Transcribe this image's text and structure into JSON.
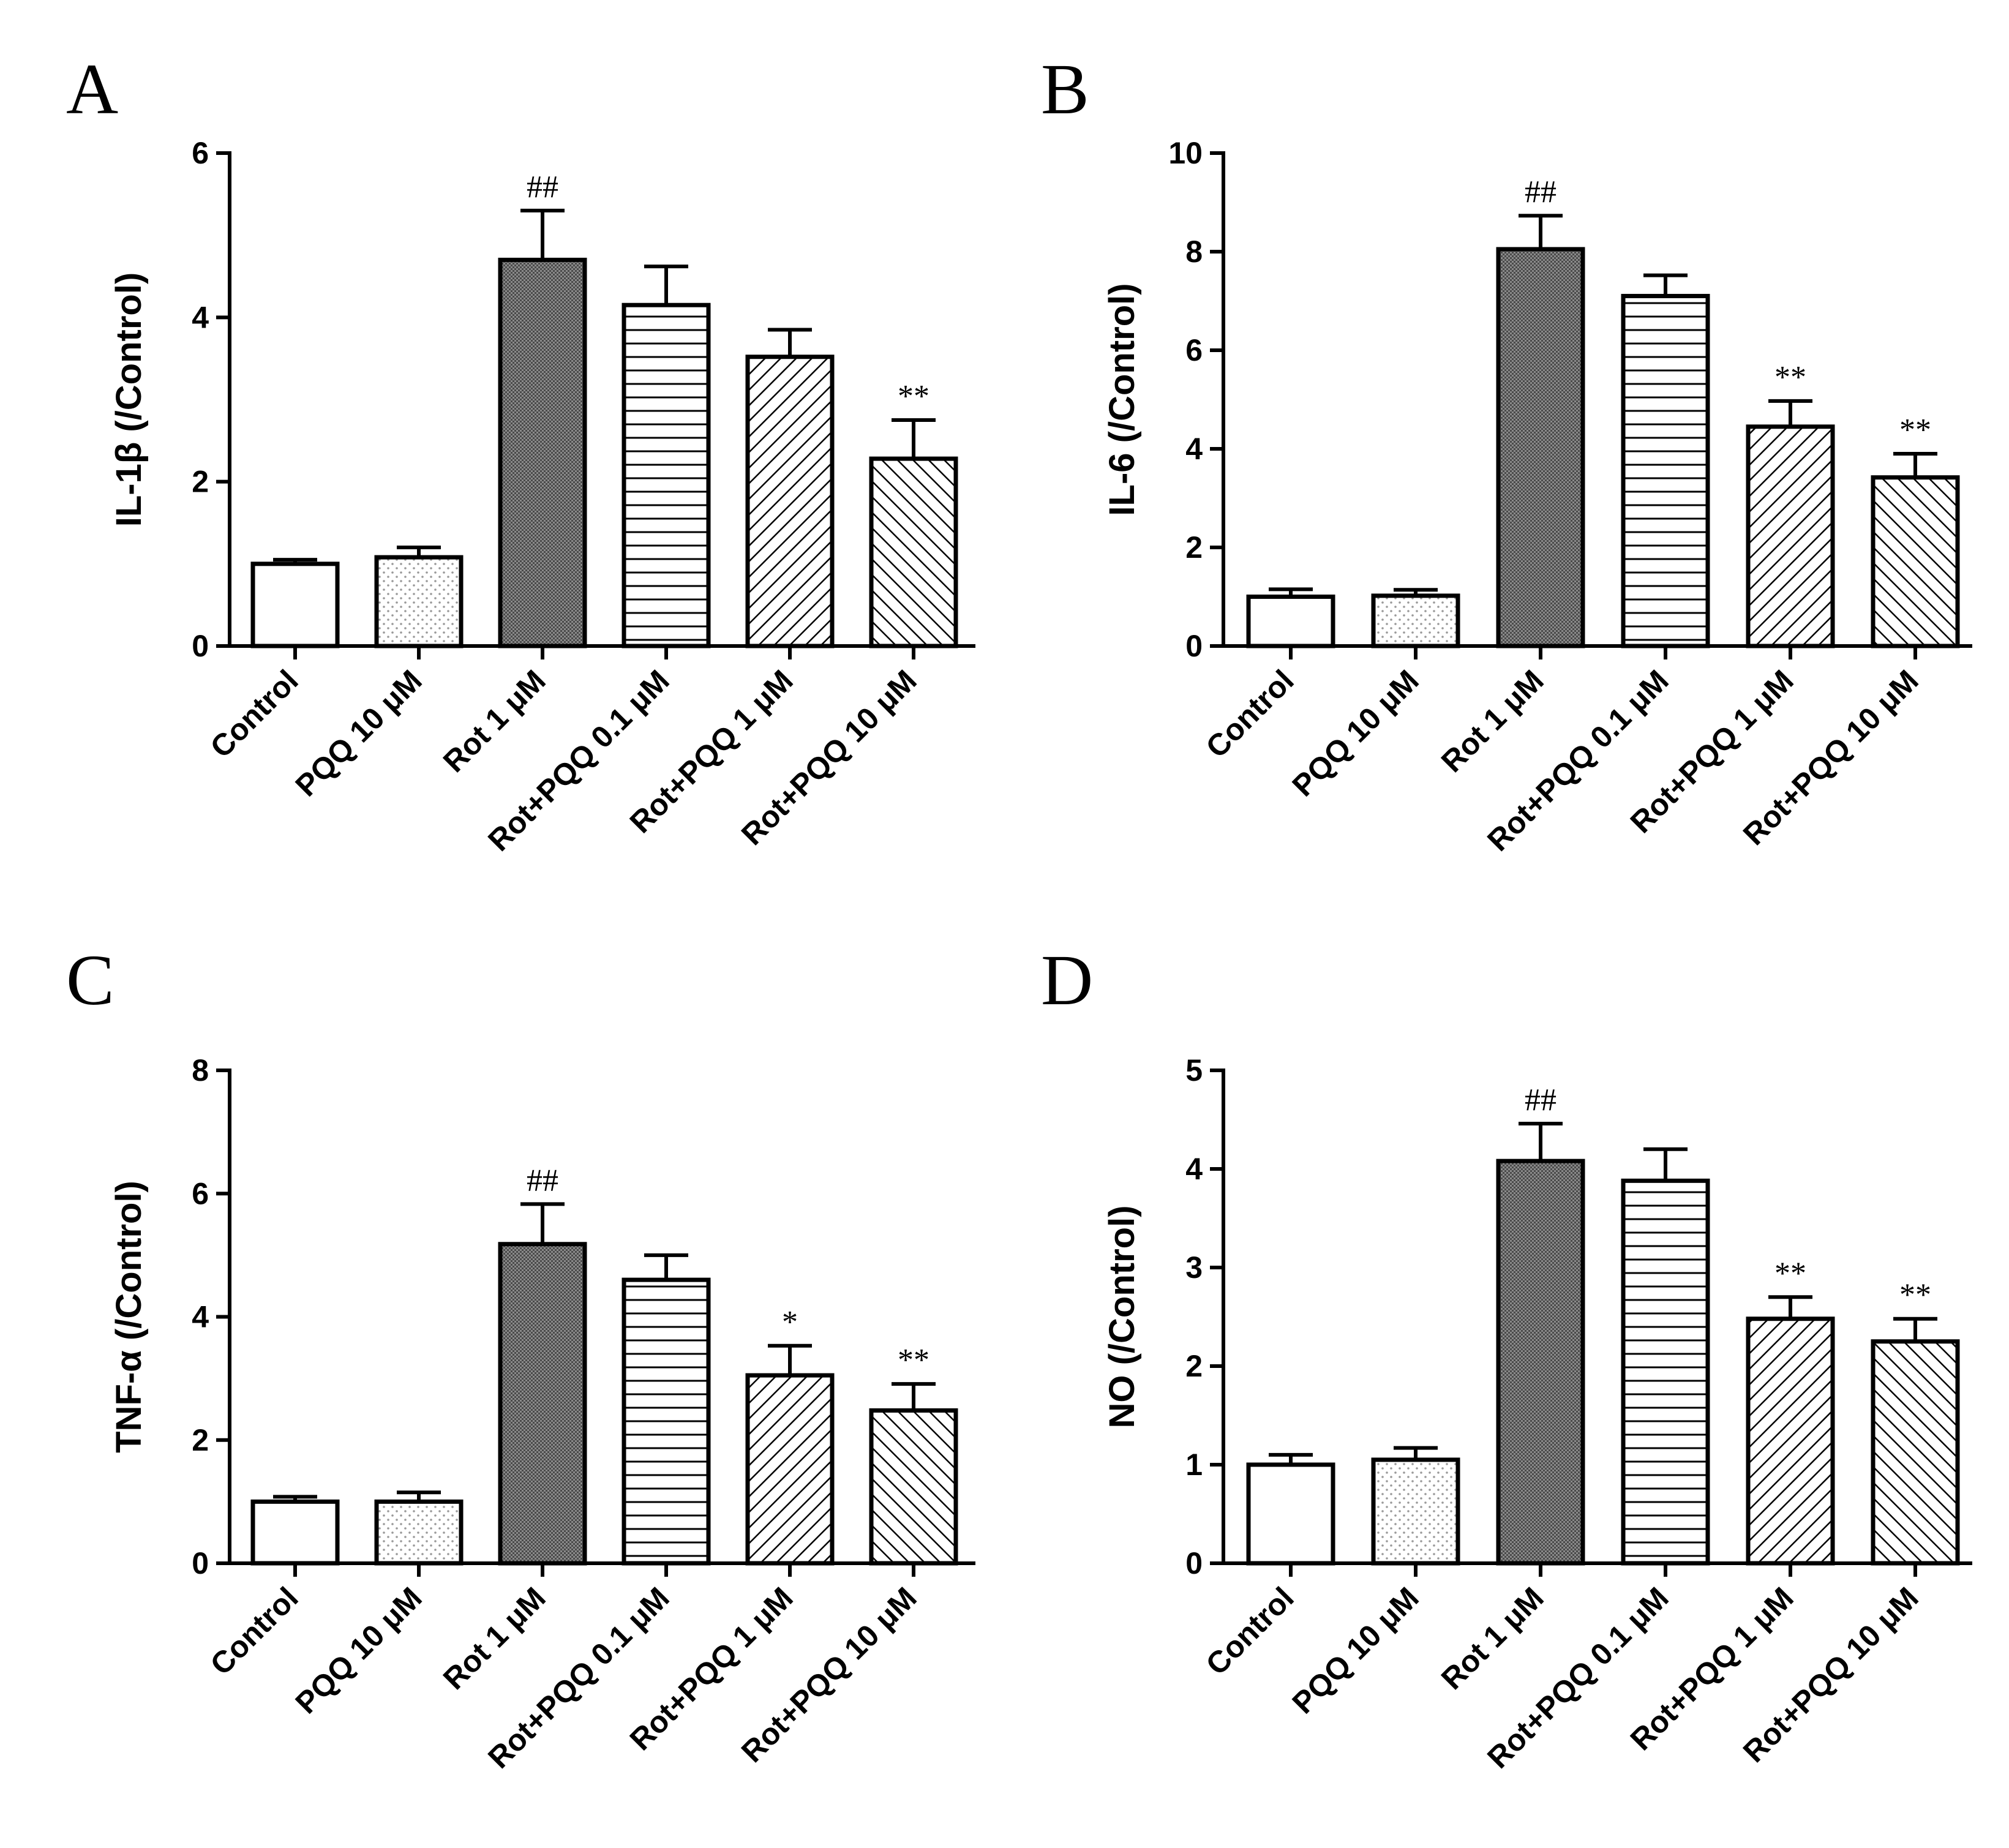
{
  "figure": {
    "colors": {
      "ink": "#000000",
      "paper": "#ffffff",
      "dense_fill": "#7a7a7a"
    }
  },
  "chart_data": [
    {
      "type": "bar",
      "panel": "A",
      "ylabel": "IL-1β (/Control)",
      "xlabel": "",
      "ylim": [
        0,
        6
      ],
      "yticks": [
        0,
        2,
        4,
        6
      ],
      "categories": [
        "Control",
        "PQQ 10 μM",
        "Rot 1 μM",
        "Rot+PQQ 0.1 μM",
        "Rot+PQQ 1 μM",
        "Rot+PQQ 10 μM"
      ],
      "values": [
        1.0,
        1.08,
        4.7,
        4.15,
        3.52,
        2.28
      ],
      "errors": [
        0.05,
        0.12,
        0.6,
        0.47,
        0.33,
        0.47
      ],
      "annotations": [
        "",
        "",
        "##",
        "",
        "",
        "**"
      ],
      "fill_patterns": [
        "none",
        "dots",
        "dense",
        "hlines",
        "diag",
        "diag-back"
      ]
    },
    {
      "type": "bar",
      "panel": "B",
      "ylabel": "IL-6 (/Control)",
      "xlabel": "",
      "ylim": [
        0,
        10
      ],
      "yticks": [
        0,
        2,
        4,
        6,
        8,
        10
      ],
      "categories": [
        "Control",
        "PQQ 10 μM",
        "Rot 1 μM",
        "Rot+PQQ 0.1 μM",
        "Rot+PQQ 1 μM",
        "Rot+PQQ 10 μM"
      ],
      "values": [
        1.0,
        1.02,
        8.05,
        7.1,
        4.45,
        3.42
      ],
      "errors": [
        0.15,
        0.12,
        0.68,
        0.42,
        0.52,
        0.48
      ],
      "annotations": [
        "",
        "",
        "##",
        "",
        "**",
        "**"
      ],
      "fill_patterns": [
        "none",
        "dots",
        "dense",
        "hlines",
        "diag",
        "diag-back"
      ]
    },
    {
      "type": "bar",
      "panel": "C",
      "ylabel": "TNF-α (/Control)",
      "xlabel": "",
      "ylim": [
        0,
        8
      ],
      "yticks": [
        0,
        2,
        4,
        6,
        8
      ],
      "categories": [
        "Control",
        "PQQ 10 μM",
        "Rot 1 μM",
        "Rot+PQQ 0.1 μM",
        "Rot+PQQ 1 μM",
        "Rot+PQQ 10 μM"
      ],
      "values": [
        1.0,
        1.0,
        5.18,
        4.6,
        3.05,
        2.48
      ],
      "errors": [
        0.08,
        0.15,
        0.65,
        0.4,
        0.48,
        0.43
      ],
      "annotations": [
        "",
        "",
        "##",
        "",
        "*",
        "**"
      ],
      "fill_patterns": [
        "none",
        "dots",
        "dense",
        "hlines",
        "diag",
        "diag-back"
      ]
    },
    {
      "type": "bar",
      "panel": "D",
      "ylabel": "NO (/Control)",
      "xlabel": "",
      "ylim": [
        0,
        5
      ],
      "yticks": [
        0,
        1,
        2,
        3,
        4,
        5
      ],
      "categories": [
        "Control",
        "PQQ 10 μM",
        "Rot 1 μM",
        "Rot+PQQ 0.1 μM",
        "Rot+PQQ 1 μM",
        "Rot+PQQ 10 μM"
      ],
      "values": [
        1.0,
        1.05,
        4.08,
        3.88,
        2.48,
        2.25
      ],
      "errors": [
        0.1,
        0.12,
        0.38,
        0.32,
        0.22,
        0.23
      ],
      "annotations": [
        "",
        "",
        "##",
        "",
        "**",
        "**"
      ],
      "fill_patterns": [
        "none",
        "dots",
        "dense",
        "hlines",
        "diag",
        "diag-back"
      ]
    }
  ]
}
